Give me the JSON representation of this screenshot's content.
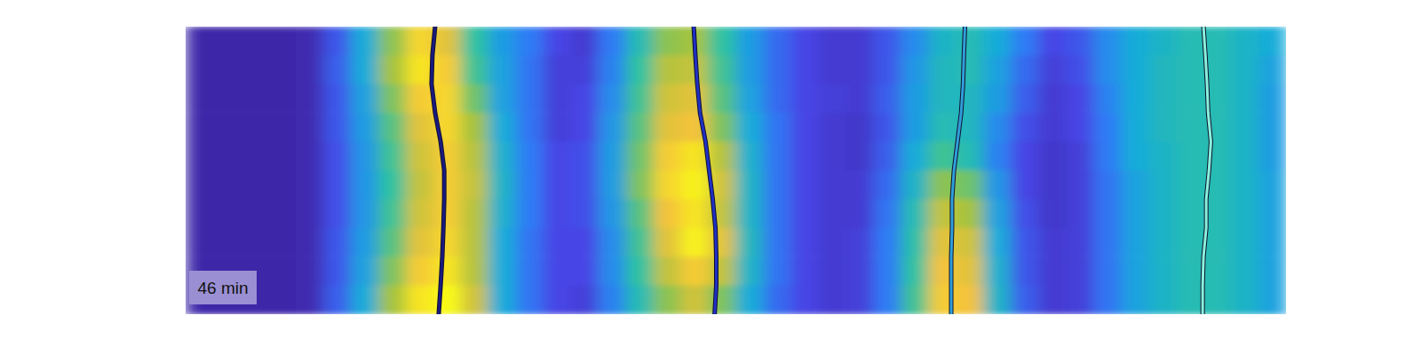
{
  "chart_data": {
    "type": "heatmap",
    "annotation": "46 min",
    "tick_labels": false,
    "xlim": [
      0,
      40
    ],
    "ylim": [
      0,
      10
    ],
    "color_range": [
      0,
      1
    ],
    "cells": [
      [
        0,
        0,
        0,
        0,
        0.02,
        0.2,
        0.45,
        0.72,
        0.92,
        0.85,
        0.6,
        0.4,
        0.3,
        0.15,
        0.1,
        0.3,
        0.55,
        0.72,
        0.75,
        0.6,
        0.4,
        0.25,
        0.15,
        0.1,
        0.1,
        0.2,
        0.35,
        0.5,
        0.55,
        0.45,
        0.3,
        0.15,
        0.2,
        0.35,
        0.45,
        0.5,
        0.55,
        0.55,
        0.5,
        0.45
      ],
      [
        0,
        0,
        0,
        0,
        0.02,
        0.22,
        0.45,
        0.75,
        0.95,
        0.9,
        0.62,
        0.42,
        0.28,
        0.12,
        0.12,
        0.32,
        0.6,
        0.78,
        0.8,
        0.62,
        0.4,
        0.25,
        0.15,
        0.1,
        0.1,
        0.2,
        0.38,
        0.52,
        0.55,
        0.42,
        0.25,
        0.12,
        0.18,
        0.35,
        0.45,
        0.52,
        0.55,
        0.55,
        0.5,
        0.42
      ],
      [
        0,
        0,
        0,
        0,
        0.02,
        0.2,
        0.42,
        0.7,
        0.9,
        0.92,
        0.68,
        0.42,
        0.28,
        0.12,
        0.15,
        0.35,
        0.62,
        0.82,
        0.85,
        0.65,
        0.42,
        0.25,
        0.15,
        0.12,
        0.1,
        0.22,
        0.4,
        0.52,
        0.52,
        0.4,
        0.22,
        0.1,
        0.15,
        0.32,
        0.45,
        0.52,
        0.55,
        0.55,
        0.5,
        0.4
      ],
      [
        0,
        0,
        0,
        0,
        0.02,
        0.2,
        0.4,
        0.65,
        0.85,
        0.92,
        0.75,
        0.45,
        0.28,
        0.12,
        0.15,
        0.38,
        0.65,
        0.85,
        0.88,
        0.7,
        0.45,
        0.28,
        0.15,
        0.1,
        0.08,
        0.2,
        0.4,
        0.55,
        0.52,
        0.35,
        0.18,
        0.1,
        0.15,
        0.3,
        0.45,
        0.52,
        0.55,
        0.55,
        0.5,
        0.4
      ],
      [
        0,
        0,
        0,
        0,
        0.02,
        0.18,
        0.38,
        0.62,
        0.82,
        0.9,
        0.78,
        0.48,
        0.3,
        0.15,
        0.18,
        0.4,
        0.68,
        0.9,
        0.95,
        0.78,
        0.48,
        0.28,
        0.15,
        0.1,
        0.08,
        0.22,
        0.45,
        0.62,
        0.55,
        0.32,
        0.15,
        0.08,
        0.12,
        0.3,
        0.45,
        0.5,
        0.55,
        0.55,
        0.5,
        0.4
      ],
      [
        0,
        0,
        0,
        0,
        0.02,
        0.18,
        0.38,
        0.6,
        0.8,
        0.9,
        0.8,
        0.5,
        0.3,
        0.15,
        0.18,
        0.4,
        0.7,
        0.92,
        0.98,
        0.82,
        0.5,
        0.28,
        0.15,
        0.1,
        0.1,
        0.25,
        0.5,
        0.72,
        0.68,
        0.38,
        0.15,
        0.08,
        0.12,
        0.28,
        0.42,
        0.5,
        0.55,
        0.55,
        0.5,
        0.42
      ],
      [
        0,
        0,
        0,
        0,
        0.02,
        0.18,
        0.38,
        0.62,
        0.82,
        0.9,
        0.78,
        0.48,
        0.3,
        0.15,
        0.18,
        0.38,
        0.65,
        0.88,
        0.95,
        0.8,
        0.5,
        0.28,
        0.15,
        0.1,
        0.1,
        0.28,
        0.55,
        0.8,
        0.75,
        0.42,
        0.18,
        0.08,
        0.12,
        0.28,
        0.42,
        0.5,
        0.55,
        0.55,
        0.5,
        0.42
      ],
      [
        0,
        0,
        0,
        0,
        0.02,
        0.2,
        0.4,
        0.65,
        0.85,
        0.92,
        0.78,
        0.45,
        0.28,
        0.15,
        0.15,
        0.35,
        0.62,
        0.85,
        0.98,
        0.85,
        0.52,
        0.28,
        0.15,
        0.1,
        0.12,
        0.3,
        0.58,
        0.85,
        0.82,
        0.45,
        0.2,
        0.1,
        0.12,
        0.28,
        0.42,
        0.5,
        0.55,
        0.55,
        0.5,
        0.42
      ],
      [
        0,
        0,
        0,
        0,
        0.02,
        0.2,
        0.42,
        0.7,
        0.9,
        0.95,
        0.78,
        0.45,
        0.28,
        0.15,
        0.15,
        0.35,
        0.6,
        0.8,
        0.9,
        0.8,
        0.5,
        0.28,
        0.15,
        0.1,
        0.12,
        0.3,
        0.6,
        0.88,
        0.85,
        0.48,
        0.2,
        0.1,
        0.12,
        0.28,
        0.42,
        0.5,
        0.55,
        0.55,
        0.5,
        0.42
      ],
      [
        0,
        0,
        0,
        0,
        0.02,
        0.22,
        0.45,
        0.75,
        0.95,
        1.0,
        0.82,
        0.45,
        0.28,
        0.15,
        0.12,
        0.32,
        0.55,
        0.72,
        0.82,
        0.7,
        0.45,
        0.25,
        0.15,
        0.1,
        0.12,
        0.3,
        0.62,
        0.9,
        0.88,
        0.5,
        0.22,
        0.1,
        0.12,
        0.28,
        0.42,
        0.5,
        0.55,
        0.55,
        0.5,
        0.42
      ]
    ],
    "y": [
      0,
      1,
      2,
      3,
      4,
      5,
      6,
      7,
      8,
      9,
      10
    ],
    "series": [
      {
        "color": "#1a1a80",
        "x": [
          9.07,
          8.97,
          8.94,
          9.07,
          9.27,
          9.4,
          9.4,
          9.37,
          9.33,
          9.27,
          9.2
        ]
      },
      {
        "color": "#1f30c4",
        "x": [
          18.47,
          18.53,
          18.6,
          18.7,
          18.9,
          19.03,
          19.16,
          19.26,
          19.29,
          19.29,
          19.23
        ]
      },
      {
        "color": "#2f9fd8",
        "x": [
          28.33,
          28.29,
          28.26,
          28.19,
          28.06,
          27.93,
          27.86,
          27.86,
          27.83,
          27.83,
          27.83
        ]
      },
      {
        "color": "#8af2dc",
        "x": [
          37.0,
          37.07,
          37.13,
          37.17,
          37.27,
          37.2,
          37.1,
          37.1,
          37.0,
          36.97,
          36.97
        ]
      }
    ]
  }
}
